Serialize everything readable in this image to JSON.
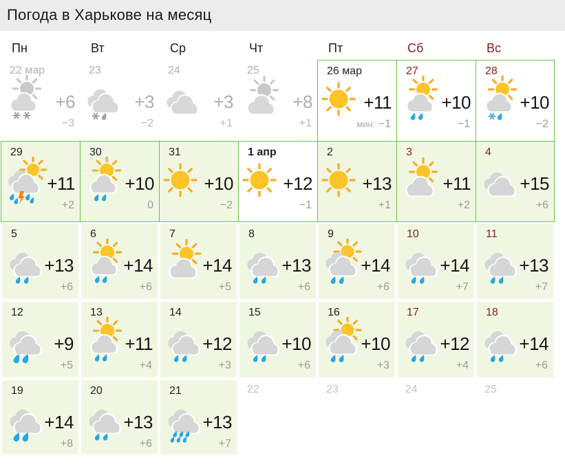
{
  "header": {
    "title": "Погода в Харькове на месяц"
  },
  "legend": {
    "min_prefix": "мин:"
  },
  "colors": {
    "title_bg": "#ececec",
    "cell_border_green": "#68c244",
    "cell_tint_green": "#eff7e3",
    "weekend_red": "#8b1b1b",
    "past_gray": "#b0b0b0",
    "rain_blue": "#2aa7e0",
    "sun_yellow": "#fdc428",
    "cloud_gray": "#d6d6d6",
    "lightning_orange": "#f58220"
  },
  "weekdays": [
    {
      "label": "Пн",
      "weekend": false
    },
    {
      "label": "Вт",
      "weekend": false
    },
    {
      "label": "Ср",
      "weekend": false
    },
    {
      "label": "Чт",
      "weekend": false
    },
    {
      "label": "Пт",
      "weekend": false
    },
    {
      "label": "Сб",
      "weekend": true
    },
    {
      "label": "Вс",
      "weekend": true
    }
  ],
  "days": [
    {
      "d": "22 мар",
      "state": "past",
      "icon": "sun-cloud-snow2",
      "t": "+6",
      "tn": "−3"
    },
    {
      "d": "23",
      "state": "past",
      "icon": "clouds-snow-rain",
      "t": "+3",
      "tn": "−2"
    },
    {
      "d": "24",
      "state": "past",
      "icon": "clouds",
      "t": "+3",
      "tn": "+1"
    },
    {
      "d": "25",
      "state": "past",
      "icon": "sun-cloud",
      "t": "+8",
      "tn": "+1"
    },
    {
      "d": "26 мар",
      "icon": "sun",
      "t": "+11",
      "tn": "−1",
      "min_label": true,
      "border": "LT",
      "bg": "white"
    },
    {
      "d": "27",
      "weekend": true,
      "icon": "sun-cloud-rain2",
      "t": "+10",
      "tn": "−1",
      "border": "LT",
      "bg": "white"
    },
    {
      "d": "28",
      "weekend": true,
      "icon": "sun-cloud-snowrain",
      "t": "+10",
      "tn": "−2",
      "border": "LTR",
      "bg": "white"
    },
    {
      "d": "29",
      "icon": "sun-clouds-storm",
      "t": "+11",
      "tn": "+2",
      "border": "LTB",
      "bg": "green"
    },
    {
      "d": "30",
      "icon": "sun-cloud-rain2",
      "t": "+10",
      "tn": "0",
      "border": "LTB",
      "bg": "green"
    },
    {
      "d": "31",
      "icon": "sun",
      "t": "+10",
      "tn": "−2",
      "border": "LTB",
      "bg": "green"
    },
    {
      "d": "1 апр",
      "bold": true,
      "icon": "sun",
      "t": "+12",
      "tn": "−1",
      "border": "LTB",
      "bg": "white"
    },
    {
      "d": "2",
      "icon": "sun",
      "t": "+13",
      "tn": "+1",
      "border": "LTB",
      "bg": "green"
    },
    {
      "d": "3",
      "weekend": true,
      "icon": "sun-cloud",
      "t": "+11",
      "tn": "+2",
      "border": "LTB",
      "bg": "green"
    },
    {
      "d": "4",
      "weekend": true,
      "icon": "clouds",
      "t": "+15",
      "tn": "+6",
      "border": "LTRB",
      "bg": "green"
    },
    {
      "d": "5",
      "icon": "clouds-rain2",
      "t": "+13",
      "tn": "+6",
      "bg": "green-gap"
    },
    {
      "d": "6",
      "icon": "sun-cloud-rain2",
      "t": "+14",
      "tn": "+6",
      "bg": "green-gap"
    },
    {
      "d": "7",
      "icon": "sun-cloud",
      "t": "+14",
      "tn": "+5",
      "bg": "green-gap"
    },
    {
      "d": "8",
      "icon": "clouds-rain2",
      "t": "+13",
      "tn": "+6",
      "bg": "green-gap"
    },
    {
      "d": "9",
      "icon": "sun-clouds-rain2",
      "t": "+14",
      "tn": "+6",
      "bg": "green-gap"
    },
    {
      "d": "10",
      "weekend": true,
      "icon": "clouds-rain2",
      "t": "+14",
      "tn": "+7",
      "bg": "green-gap"
    },
    {
      "d": "11",
      "weekend": true,
      "icon": "clouds-rain2",
      "t": "+13",
      "tn": "+7",
      "bg": "green-gap"
    },
    {
      "d": "12",
      "icon": "clouds-rain-heavy",
      "t": "+9",
      "tn": "+5",
      "bg": "green-gap"
    },
    {
      "d": "13",
      "icon": "sun-cloud-rain2",
      "t": "+11",
      "tn": "+4",
      "bg": "green-gap"
    },
    {
      "d": "14",
      "icon": "clouds-rain2",
      "t": "+12",
      "tn": "+3",
      "bg": "green-gap"
    },
    {
      "d": "15",
      "icon": "clouds-rain2",
      "t": "+10",
      "tn": "+6",
      "bg": "green-gap"
    },
    {
      "d": "16",
      "icon": "sun-clouds-rain2",
      "t": "+10",
      "tn": "+3",
      "bg": "green-gap"
    },
    {
      "d": "17",
      "weekend": true,
      "icon": "clouds-rain2",
      "t": "+12",
      "tn": "+4",
      "bg": "green-gap"
    },
    {
      "d": "18",
      "weekend": true,
      "icon": "clouds-rain2",
      "t": "+14",
      "tn": "+6",
      "bg": "green-gap"
    },
    {
      "d": "19",
      "icon": "clouds-rain-heavy",
      "t": "+14",
      "tn": "+8",
      "bg": "green-gap"
    },
    {
      "d": "20",
      "icon": "clouds-rain2",
      "t": "+13",
      "tn": "+6",
      "bg": "green-gap"
    },
    {
      "d": "21",
      "icon": "clouds-downpour",
      "t": "+13",
      "tn": "+7",
      "bg": "green-gap"
    },
    {
      "d": "22",
      "state": "empty"
    },
    {
      "d": "23",
      "state": "empty"
    },
    {
      "d": "24",
      "state": "empty"
    },
    {
      "d": "25",
      "state": "empty"
    }
  ]
}
